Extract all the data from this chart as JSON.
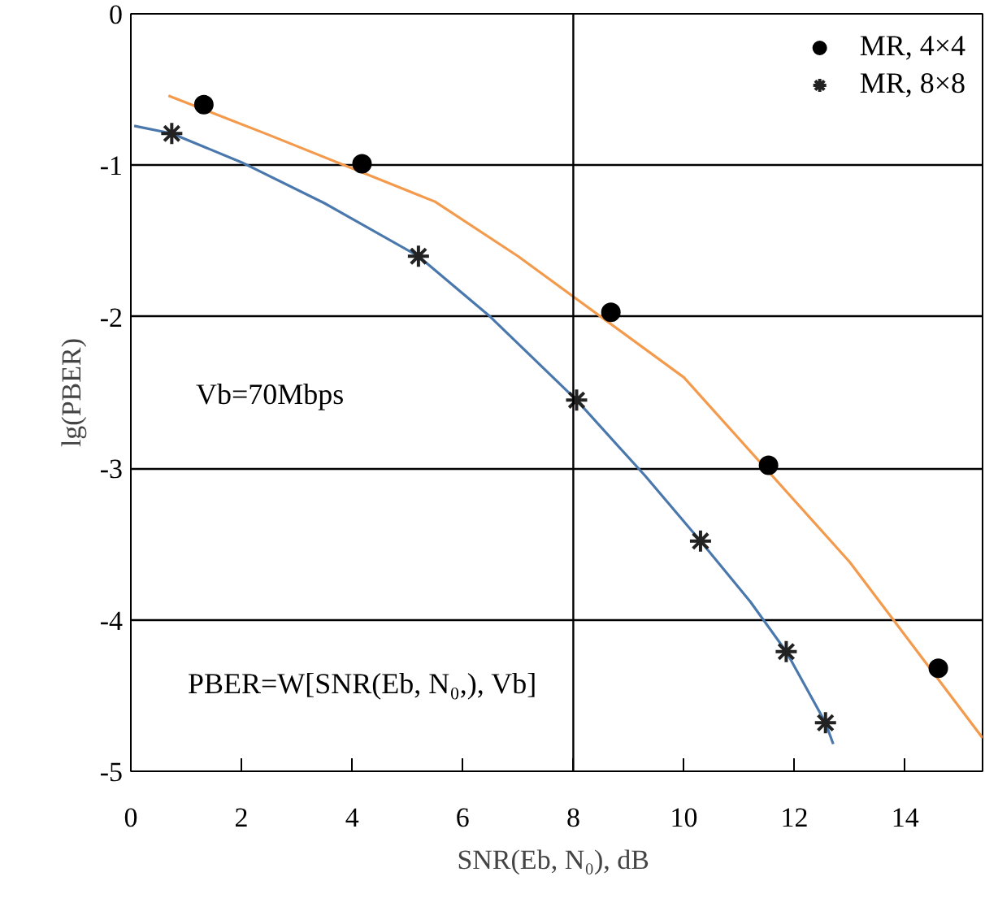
{
  "chart_data": {
    "type": "scatter",
    "xlabel": "SNR(Eb, N₀),  dB",
    "ylabel": "lg(PBER)",
    "xlim": [
      0,
      15.4
    ],
    "ylim": [
      -5,
      0
    ],
    "xticks": [
      0,
      2,
      4,
      6,
      8,
      10,
      12,
      14
    ],
    "yticks": [
      0,
      -1,
      -2,
      -3,
      -4,
      -5
    ],
    "grid": "y",
    "legend": "top right",
    "ref_lines": [
      {
        "axis": "x",
        "value": 8,
        "label": null,
        "color": "#000000"
      }
    ],
    "annotations": [
      "Vb=70Mbps",
      "PBER=W[SNR(Eb, N₀,),  Vb]"
    ],
    "series": [
      {
        "type": "line",
        "color": "#f39a4c",
        "marker": "none",
        "x": [
          0.68,
          2.5,
          5.5,
          7,
          10,
          13,
          15.4
        ],
        "values": [
          -0.54,
          -0.8,
          -1.24,
          -1.6,
          -2.4,
          -3.62,
          -4.78
        ]
      },
      {
        "type": "line",
        "color": "#4a78ad",
        "marker": "none",
        "x": [
          0.06,
          0.74,
          2,
          3.5,
          5.2,
          6.5,
          8.06,
          9.3,
          10.3,
          11.2,
          11.85,
          12.56,
          12.7
        ],
        "values": [
          -0.74,
          -0.79,
          -0.98,
          -1.25,
          -1.6,
          -2.0,
          -2.55,
          -3.05,
          -3.48,
          -3.88,
          -4.21,
          -4.68,
          -4.82
        ]
      },
      {
        "name": "MR, 4×4",
        "color": "#000000",
        "marker": "circle",
        "x": [
          1.32,
          4.18,
          8.68,
          11.53,
          14.6
        ],
        "values": [
          -0.6,
          -0.99,
          -1.97,
          -2.98,
          -4.32
        ]
      },
      {
        "name": "MR, 8×8",
        "color": "#222222",
        "marker": "cross",
        "x": [
          0.74,
          5.2,
          8.06,
          10.3,
          11.85,
          12.56
        ],
        "values": [
          -0.79,
          -1.6,
          -2.55,
          -3.48,
          -4.21,
          -4.68
        ]
      }
    ]
  }
}
